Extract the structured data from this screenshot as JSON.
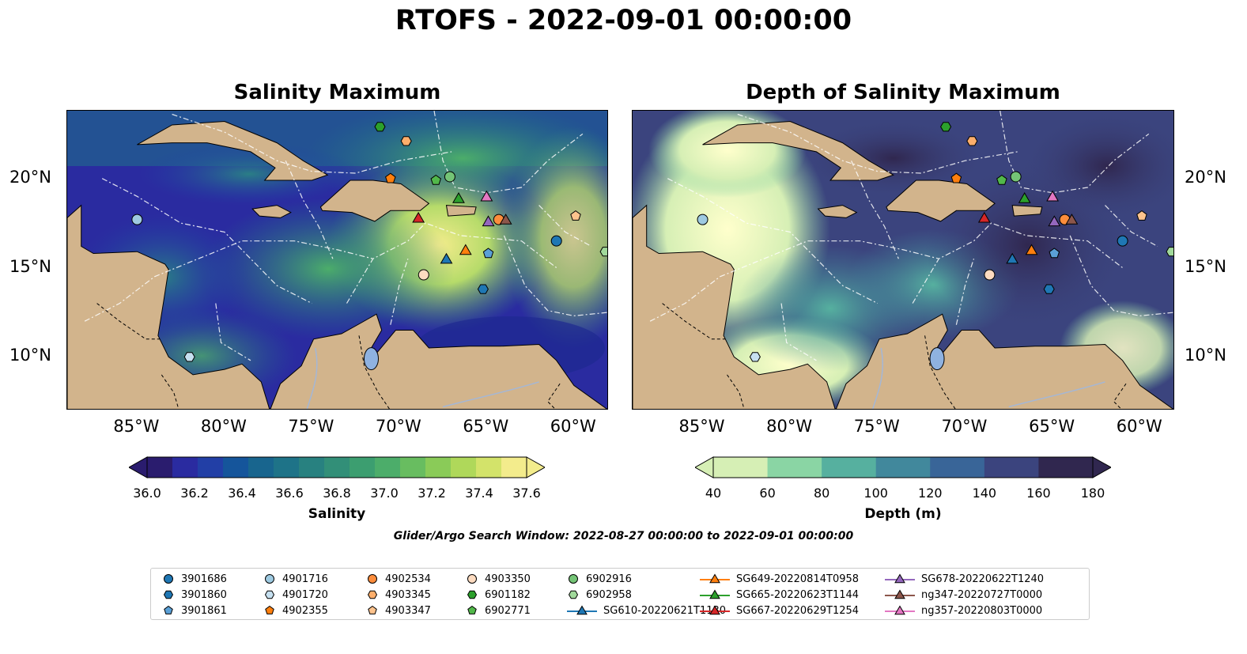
{
  "suptitle": "RTOFS - 2022-09-01 00:00:00",
  "panels": [
    {
      "title": "Salinity Maximum"
    },
    {
      "title": "Depth of Salinity Maximum"
    }
  ],
  "axes": {
    "lon_ticks": [
      "85°W",
      "80°W",
      "75°W",
      "70°W",
      "65°W",
      "60°W"
    ],
    "lat_ticks": [
      "20°N",
      "15°N",
      "10°N"
    ]
  },
  "colorbars": [
    {
      "label": "Salinity",
      "ticks": [
        "36.0",
        "36.2",
        "36.4",
        "36.6",
        "36.8",
        "37.0",
        "37.2",
        "37.4",
        "37.6"
      ],
      "colors": [
        "#2a1c6e",
        "#2a2ba0",
        "#223fa6",
        "#15559b",
        "#18658e",
        "#1e7388",
        "#288180",
        "#328f78",
        "#3c9e70",
        "#4cad6a",
        "#68bd60",
        "#8acb58",
        "#afd85a",
        "#d3e36a",
        "#f3ec8c"
      ]
    },
    {
      "label": "Depth (m)",
      "ticks": [
        "40",
        "60",
        "80",
        "100",
        "120",
        "140",
        "160",
        "180"
      ],
      "colors": [
        "#d6efb5",
        "#8ad5a4",
        "#56b09f",
        "#41889c",
        "#396598",
        "#3b447e",
        "#30274f"
      ]
    }
  ],
  "search_window": "Glider/Argo Search Window: 2022-08-27 00:00:00 to 2022-09-01 00:00:00",
  "legend": {
    "items": [
      {
        "label": "3901686",
        "marker": "circle",
        "color": "#1f77b4"
      },
      {
        "label": "3901860",
        "marker": "hexagon",
        "color": "#1f77b4"
      },
      {
        "label": "3901861",
        "marker": "pentagon",
        "color": "#5aa0d6"
      },
      {
        "label": "4901716",
        "marker": "circle",
        "color": "#9ecae1"
      },
      {
        "label": "4901720",
        "marker": "hexagon",
        "color": "#c6e0f0"
      },
      {
        "label": "4902355",
        "marker": "pentagon",
        "color": "#ff7f0e"
      },
      {
        "label": "4902534",
        "marker": "circle",
        "color": "#fd8d3c"
      },
      {
        "label": "4903345",
        "marker": "hexagon",
        "color": "#fdae6b"
      },
      {
        "label": "4903347",
        "marker": "pentagon",
        "color": "#fdc38d"
      },
      {
        "label": "4903350",
        "marker": "circle",
        "color": "#fddbc0"
      },
      {
        "label": "6901182",
        "marker": "hexagon",
        "color": "#2ca02c"
      },
      {
        "label": "6902771",
        "marker": "pentagon",
        "color": "#52b84a"
      },
      {
        "label": "6902916",
        "marker": "circle",
        "color": "#74c476"
      },
      {
        "label": "6902958",
        "marker": "hexagon",
        "color": "#a1d99b"
      },
      {
        "label": "SG610-20220621T1130",
        "marker": "triangle-line",
        "color": "#1f77b4"
      },
      {
        "label": "SG649-20220814T0958",
        "marker": "triangle-line",
        "color": "#ff7f0e"
      },
      {
        "label": "SG665-20220623T1144",
        "marker": "triangle-line",
        "color": "#2ca02c"
      },
      {
        "label": "SG667-20220629T1254",
        "marker": "triangle-line",
        "color": "#d62728"
      },
      {
        "label": "SG678-20220622T1240",
        "marker": "triangle-line",
        "color": "#9467bd"
      },
      {
        "label": "ng347-20220727T0000",
        "marker": "triangle-line",
        "color": "#8c564b"
      },
      {
        "label": "ng357-20220803T0000",
        "marker": "triangle-line",
        "color": "#e377c2"
      }
    ]
  },
  "observations": [
    {
      "id": "3901686",
      "lon": -61.0,
      "lat": 16.5
    },
    {
      "id": "3901860",
      "lon": -65.2,
      "lat": 13.8
    },
    {
      "id": "3901861",
      "lon": -64.9,
      "lat": 15.8
    },
    {
      "id": "4901716",
      "lon": -85.0,
      "lat": 17.7
    },
    {
      "id": "4901720",
      "lon": -82.0,
      "lat": 10.0
    },
    {
      "id": "4902355",
      "lon": -70.5,
      "lat": 20.0
    },
    {
      "id": "4902534",
      "lon": -64.3,
      "lat": 17.7
    },
    {
      "id": "4903345",
      "lon": -69.6,
      "lat": 22.1
    },
    {
      "id": "4903347",
      "lon": -59.9,
      "lat": 17.9
    },
    {
      "id": "4903350",
      "lon": -68.6,
      "lat": 14.6
    },
    {
      "id": "6901182",
      "lon": -71.1,
      "lat": 22.9
    },
    {
      "id": "6902771",
      "lon": -67.9,
      "lat": 19.9
    },
    {
      "id": "6902916",
      "lon": -67.1,
      "lat": 20.1
    },
    {
      "id": "6902958",
      "lon": -58.2,
      "lat": 15.9
    },
    {
      "id": "SG610-20220621T1130",
      "lon": -67.3,
      "lat": 15.5
    },
    {
      "id": "SG649-20220814T0958",
      "lon": -66.2,
      "lat": 16.0
    },
    {
      "id": "SG665-20220623T1144",
      "lon": -66.6,
      "lat": 18.9
    },
    {
      "id": "SG667-20220629T1254",
      "lon": -68.9,
      "lat": 17.8
    },
    {
      "id": "SG678-20220622T1240",
      "lon": -64.9,
      "lat": 17.6
    },
    {
      "id": "ng347-20220727T0000",
      "lon": -63.9,
      "lat": 17.7
    },
    {
      "id": "ng357-20220803T0000",
      "lon": -65.0,
      "lat": 19.0
    }
  ],
  "map_colors": {
    "land": "#d2b48c",
    "lake": "#8fb2e0",
    "river": "#a4b7d6"
  }
}
